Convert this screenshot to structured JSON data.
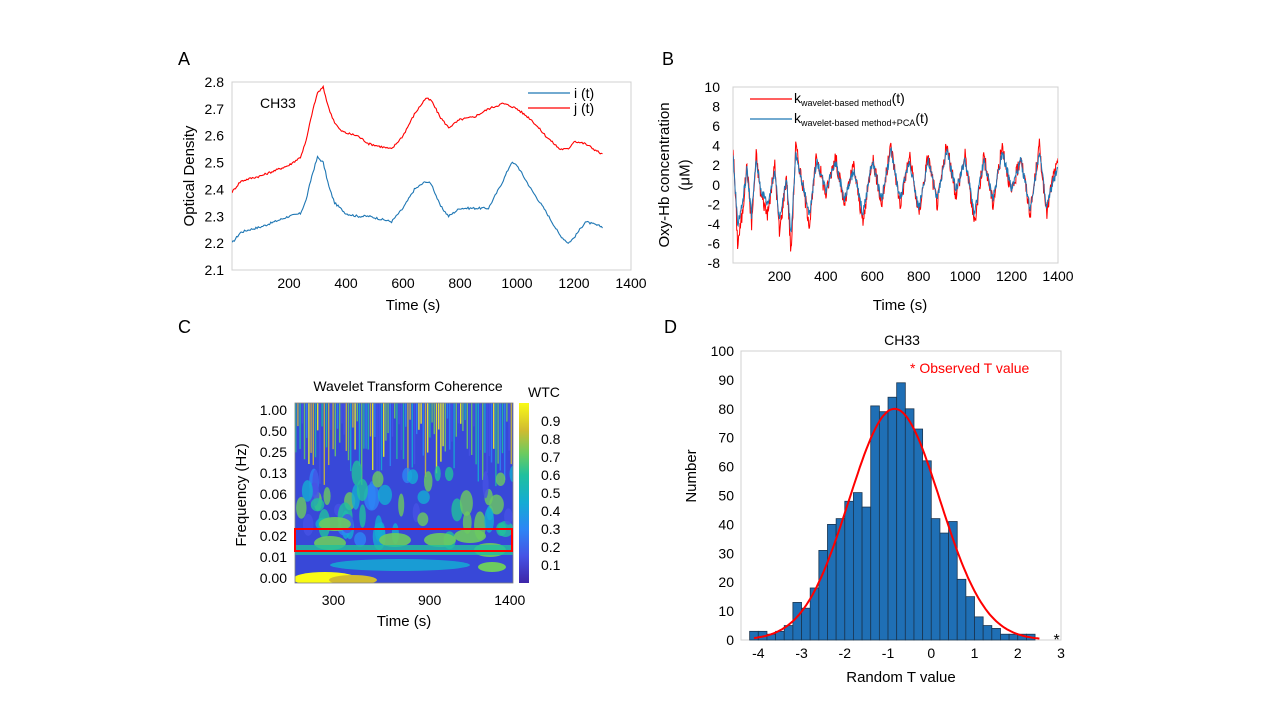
{
  "chart_data": [
    {
      "id": "A",
      "type": "line",
      "panel_label": "A",
      "annotation": "CH33",
      "xlabel": "Time (s)",
      "ylabel": "Optical Density",
      "xlim": [
        0,
        1400
      ],
      "ylim": [
        2.1,
        2.8
      ],
      "xticks": [
        200,
        400,
        600,
        800,
        1000,
        1200,
        1400
      ],
      "yticks": [
        2.1,
        2.2,
        2.3,
        2.4,
        2.5,
        2.6,
        2.7,
        2.8
      ],
      "legend_position": "top-right",
      "series": [
        {
          "name": "i (t)",
          "color": "#1f77b4",
          "x": [
            0,
            30,
            60,
            100,
            150,
            200,
            240,
            260,
            280,
            300,
            320,
            340,
            360,
            380,
            400,
            440,
            480,
            520,
            560,
            600,
            640,
            680,
            700,
            730,
            760,
            800,
            850,
            900,
            950,
            980,
            1000,
            1050,
            1100,
            1150,
            1180,
            1200,
            1240,
            1270,
            1300
          ],
          "y": [
            2.2,
            2.24,
            2.25,
            2.26,
            2.28,
            2.3,
            2.31,
            2.36,
            2.45,
            2.52,
            2.5,
            2.41,
            2.35,
            2.33,
            2.31,
            2.3,
            2.3,
            2.29,
            2.28,
            2.33,
            2.4,
            2.43,
            2.42,
            2.34,
            2.3,
            2.33,
            2.33,
            2.33,
            2.43,
            2.5,
            2.49,
            2.4,
            2.32,
            2.23,
            2.2,
            2.22,
            2.28,
            2.27,
            2.26
          ]
        },
        {
          "name": "j (t)",
          "color": "#ff0000",
          "x": [
            0,
            30,
            60,
            100,
            150,
            200,
            240,
            260,
            280,
            300,
            320,
            340,
            360,
            380,
            400,
            440,
            480,
            520,
            560,
            600,
            640,
            680,
            700,
            730,
            760,
            800,
            850,
            900,
            950,
            980,
            1000,
            1050,
            1100,
            1150,
            1180,
            1200,
            1240,
            1270,
            1300
          ],
          "y": [
            2.39,
            2.43,
            2.44,
            2.45,
            2.47,
            2.49,
            2.52,
            2.58,
            2.68,
            2.76,
            2.78,
            2.7,
            2.65,
            2.62,
            2.61,
            2.6,
            2.57,
            2.56,
            2.55,
            2.6,
            2.68,
            2.74,
            2.73,
            2.67,
            2.63,
            2.66,
            2.67,
            2.7,
            2.72,
            2.71,
            2.7,
            2.66,
            2.6,
            2.55,
            2.55,
            2.58,
            2.57,
            2.55,
            2.53
          ]
        }
      ]
    },
    {
      "id": "B",
      "type": "line",
      "panel_label": "B",
      "xlabel": "Time (s)",
      "ylabel": "Oxy-Hb concentration (μM)",
      "xlim": [
        0,
        1400
      ],
      "ylim": [
        -8,
        10
      ],
      "xticks": [
        200,
        400,
        600,
        800,
        1000,
        1200,
        1400
      ],
      "yticks": [
        -8,
        -6,
        -4,
        -2,
        0,
        2,
        4,
        6,
        8,
        10
      ],
      "legend_position": "top-left",
      "series": [
        {
          "name": "k",
          "subscript": "wavelet-based method",
          "suffix": "(t)",
          "color": "#ff0000",
          "x": [
            0,
            20,
            40,
            60,
            80,
            100,
            120,
            150,
            180,
            200,
            230,
            250,
            270,
            300,
            330,
            360,
            400,
            440,
            480,
            520,
            560,
            600,
            640,
            680,
            720,
            760,
            800,
            840,
            880,
            920,
            960,
            1000,
            1040,
            1080,
            1120,
            1160,
            1200,
            1240,
            1280,
            1320,
            1350,
            1380,
            1400
          ],
          "y": [
            4,
            -6,
            -3,
            2,
            -4,
            3,
            -1,
            -3,
            2,
            -5,
            1,
            -7,
            4,
            0,
            -4,
            3,
            -1,
            3,
            -2,
            2,
            -4,
            3,
            -2,
            4,
            -2,
            3,
            -3,
            3,
            -2,
            4,
            -1,
            3,
            -4,
            3,
            -2,
            4,
            -1,
            3,
            -3,
            4,
            -3,
            1,
            2
          ]
        },
        {
          "name": "k",
          "subscript": "wavelet-based method+PCA",
          "suffix": "(t)",
          "color": "#1f77b4",
          "x": [
            0,
            20,
            40,
            60,
            80,
            100,
            120,
            150,
            180,
            200,
            230,
            250,
            270,
            300,
            330,
            360,
            400,
            440,
            480,
            520,
            560,
            600,
            640,
            680,
            720,
            760,
            800,
            840,
            880,
            920,
            960,
            1000,
            1040,
            1080,
            1120,
            1160,
            1200,
            1240,
            1280,
            1320,
            1350,
            1380,
            1400
          ],
          "y": [
            3,
            -4,
            -2,
            1.5,
            -3,
            2.5,
            -0.5,
            -2,
            1.5,
            -3.5,
            0.5,
            -5,
            3,
            0,
            -3,
            2.5,
            -0.5,
            2.5,
            -1.5,
            1.5,
            -3,
            2.5,
            -1.5,
            3.5,
            -1.5,
            2.5,
            -2.5,
            2.5,
            -1.5,
            3.5,
            -0.5,
            2.5,
            -3,
            2.5,
            -1.5,
            3.5,
            -0.5,
            2.5,
            -2.5,
            3.5,
            -2.5,
            0.5,
            1.5
          ]
        }
      ]
    },
    {
      "id": "C",
      "type": "heatmap",
      "panel_label": "C",
      "title": "Wavelet Transform  Coherence",
      "xlabel": "Time (s)",
      "ylabel": "Frequency (Hz)",
      "xlim": [
        60,
        1420
      ],
      "xticks": [
        300,
        900,
        1400
      ],
      "ytick_labels": [
        "1.00",
        "0.50",
        "0.25",
        "0.13",
        "0.06",
        "0.03",
        "0.02",
        "0.01",
        "0.00"
      ],
      "colorbar_label": "WTC",
      "colorbar_ticks": [
        0.1,
        0.2,
        0.3,
        0.4,
        0.5,
        0.6,
        0.7,
        0.8,
        0.9
      ],
      "colorbar_range": [
        0,
        1
      ],
      "highlight_band_hz": "0.02",
      "highlight_color": "#ff0000"
    },
    {
      "id": "D",
      "type": "bar",
      "panel_label": "D",
      "title": "CH33",
      "xlabel": "Random T value",
      "ylabel": "Number",
      "xlim": [
        -4.4,
        3
      ],
      "ylim": [
        0,
        100
      ],
      "xticks": [
        -4,
        -3,
        -2,
        -1,
        0,
        1,
        2,
        3
      ],
      "yticks": [
        0,
        10,
        20,
        30,
        40,
        50,
        60,
        70,
        80,
        90,
        100
      ],
      "bin_width": 0.2,
      "bin_starts": [
        -4.2,
        -4.0,
        -3.8,
        -3.6,
        -3.4,
        -3.2,
        -3.0,
        -2.8,
        -2.6,
        -2.4,
        -2.2,
        -2.0,
        -1.8,
        -1.6,
        -1.4,
        -1.2,
        -1.0,
        -0.8,
        -0.6,
        -0.4,
        -0.2,
        0.0,
        0.2,
        0.4,
        0.6,
        0.8,
        1.0,
        1.2,
        1.4,
        1.6,
        1.8,
        2.0,
        2.2
      ],
      "counts": [
        3,
        3,
        2,
        3,
        5,
        13,
        11,
        18,
        31,
        40,
        42,
        48,
        51,
        46,
        81,
        79,
        84,
        89,
        80,
        73,
        62,
        42,
        37,
        41,
        21,
        15,
        8,
        5,
        4,
        2,
        2,
        2,
        2
      ],
      "fit_curve": {
        "type": "normal",
        "peak": 80,
        "mean": -0.85,
        "std": 1.05,
        "color": "#ff0000"
      },
      "observed_t": 2.9,
      "legend_text": "* Observed T value",
      "bar_color": "#1f6fb5"
    }
  ]
}
